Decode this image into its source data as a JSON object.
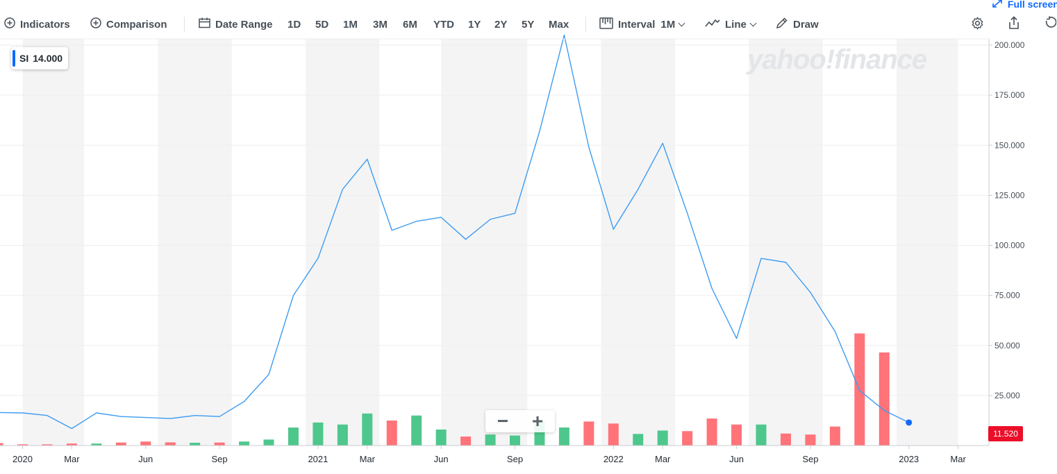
{
  "toolbar": {
    "indicators": "Indicators",
    "comparison": "Comparison",
    "date_range": "Date Range",
    "ranges": [
      "1D",
      "5D",
      "1M",
      "3M",
      "6M",
      "YTD",
      "1Y",
      "2Y",
      "5Y",
      "Max"
    ],
    "interval_label": "Interval",
    "interval_value": "1M",
    "chart_type": "Line",
    "draw": "Draw",
    "fullscreen": "Full screen",
    "icons": [
      "add-circle-icon",
      "calendar-icon",
      "candlestick-icon",
      "line-chart-icon",
      "pencil-icon",
      "gear-icon",
      "share-icon",
      "reset-icon",
      "expand-icon"
    ]
  },
  "legend": {
    "symbol": "SI",
    "value": "14.000",
    "color": "#0f69ff"
  },
  "watermark": "yahoo!finance",
  "zoom": {
    "minus": "−",
    "plus": "+"
  },
  "last_price": "11.520",
  "chart_data": {
    "type": "line",
    "ylim": [
      0,
      210
    ],
    "y_ticks": [
      "200.000",
      "175.000",
      "150.000",
      "125.000",
      "100.000",
      "75.000",
      "50.000",
      "25.000"
    ],
    "y_tick_values": [
      200,
      175,
      150,
      125,
      100,
      75,
      50,
      25
    ],
    "x_tick_labels": [
      "2020",
      "Mar",
      "Jun",
      "Sep",
      "2021",
      "Mar",
      "Jun",
      "Sep",
      "2022",
      "Mar",
      "Jun",
      "Sep",
      "2023",
      "Mar"
    ],
    "x_tick_months": [
      0,
      2,
      5,
      8,
      12,
      14,
      17,
      20,
      24,
      26,
      29,
      32,
      36,
      38
    ],
    "shaded_bands": [
      [
        0,
        2.5
      ],
      [
        5.5,
        8.5
      ],
      [
        11.5,
        14.5
      ],
      [
        17,
        20.5
      ],
      [
        23.5,
        26.5
      ],
      [
        29.5,
        32.5
      ],
      [
        35.5,
        38
      ]
    ],
    "price_series": {
      "color": "#3d9bf0",
      "months": [
        -1,
        0,
        1,
        2,
        3,
        4,
        5,
        6,
        7,
        8,
        9,
        10,
        11,
        12,
        13,
        14,
        15,
        16,
        17,
        18,
        19,
        20,
        21,
        22,
        23,
        24,
        25,
        26,
        27,
        28,
        29,
        30,
        31,
        32,
        33,
        34,
        35,
        36
      ],
      "values": [
        16.5,
        16.3,
        15,
        8.5,
        16.3,
        14.5,
        14,
        13.5,
        15,
        14.5,
        22,
        35.5,
        75,
        93.5,
        128,
        143,
        107.5,
        112,
        114,
        103,
        113,
        116,
        157,
        205,
        149,
        108,
        128,
        151,
        116,
        78.5,
        53.5,
        93.5,
        91.5,
        76.5,
        57,
        27.5,
        17.5,
        11.5
      ]
    },
    "volume_series": {
      "months": [
        -1,
        0,
        1,
        2,
        3,
        4,
        5,
        6,
        7,
        8,
        9,
        10,
        11,
        12,
        13,
        14,
        15,
        16,
        17,
        18,
        19,
        20,
        21,
        22,
        23,
        24,
        25,
        26,
        27,
        28,
        29,
        30,
        31,
        32,
        33,
        34,
        35
      ],
      "values": [
        1.2,
        0.6,
        0.6,
        1.0,
        1.0,
        1.5,
        2.0,
        1.6,
        1.4,
        1.5,
        2.0,
        3.0,
        9.0,
        11.5,
        10.5,
        16.0,
        12.5,
        15.0,
        8.0,
        4.5,
        5.5,
        5.0,
        12.0,
        9.0,
        12.0,
        11.0,
        5.8,
        7.5,
        7.2,
        13.5,
        10.5,
        10.5,
        6.0,
        5.5,
        9.5,
        56.0,
        46.5
      ],
      "up": [
        false,
        false,
        false,
        false,
        true,
        false,
        false,
        false,
        true,
        false,
        true,
        true,
        true,
        true,
        true,
        true,
        false,
        true,
        true,
        false,
        true,
        true,
        true,
        true,
        false,
        false,
        true,
        true,
        false,
        false,
        false,
        true,
        false,
        false,
        false,
        false,
        false
      ],
      "up_color": "#4ec78c",
      "down_color": "#ff7379"
    }
  }
}
